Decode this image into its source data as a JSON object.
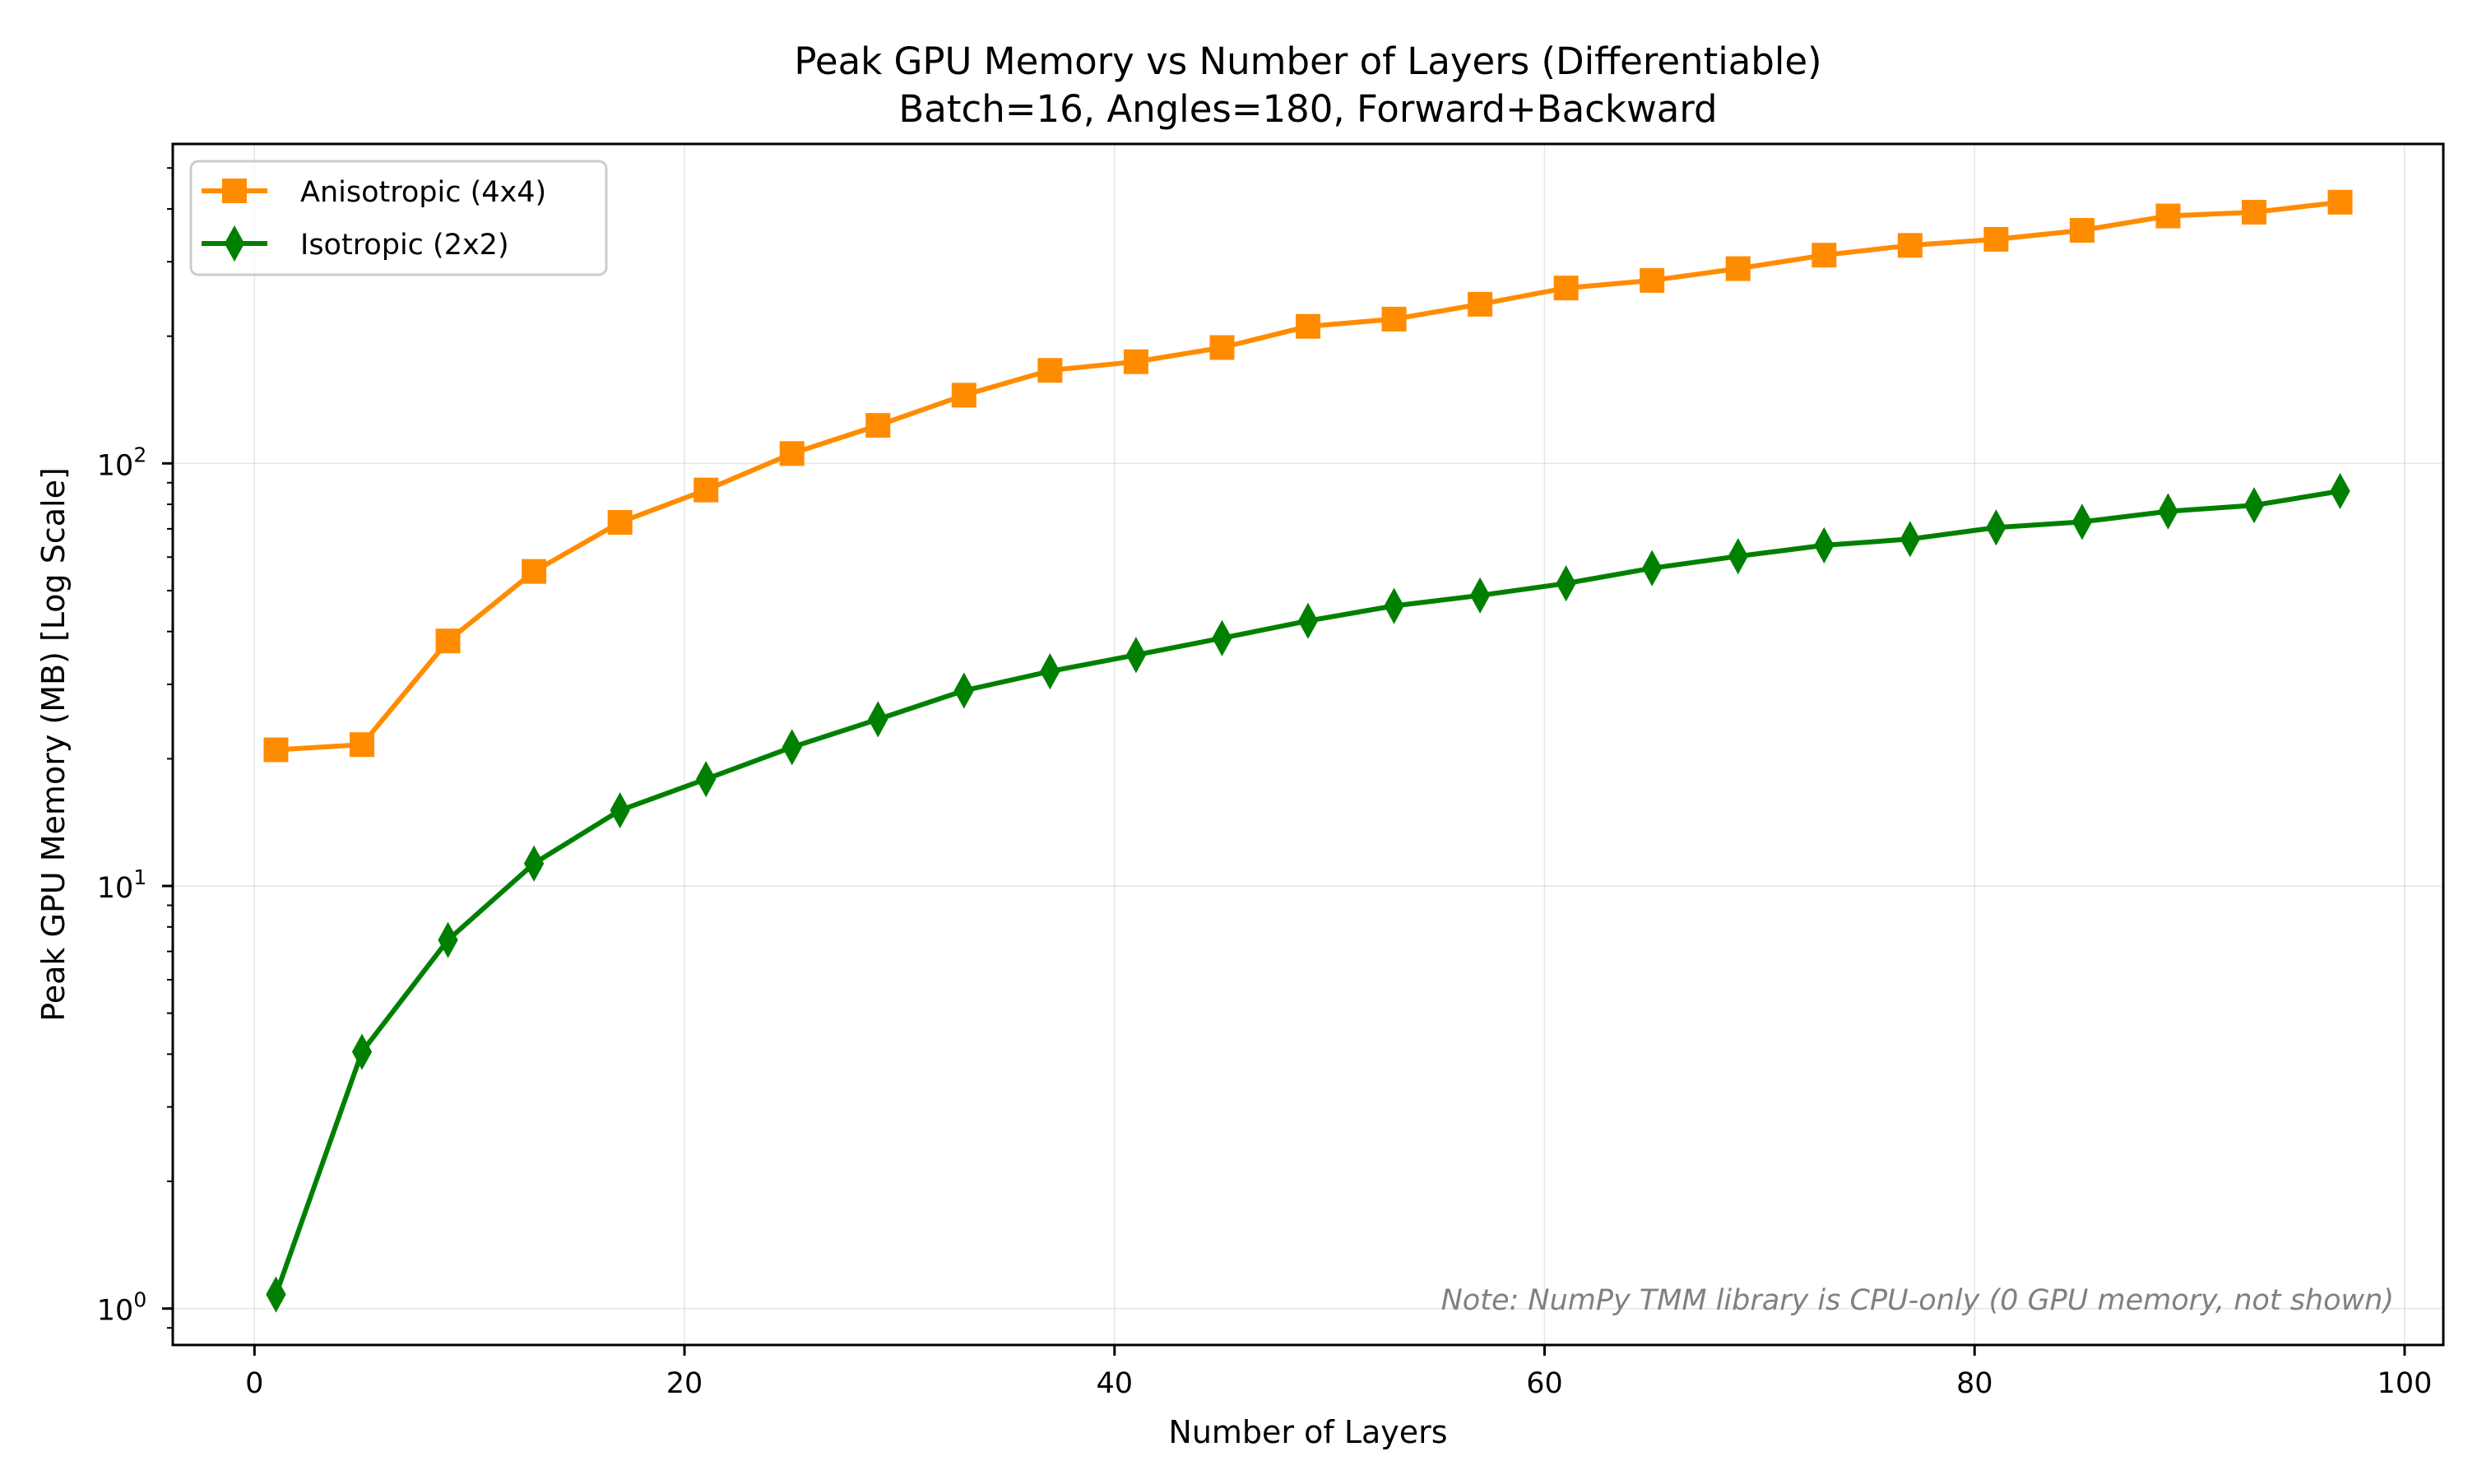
{
  "chart_data": {
    "type": "line",
    "title": "Peak GPU Memory vs Number of Layers (Differentiable)",
    "subtitle": "Batch=16, Angles=180, Forward+Backward",
    "xlabel": "Number of Layers",
    "ylabel": "Peak GPU Memory (MB) [Log Scale]",
    "yscale": "log",
    "xlim": [
      -3.8,
      101.8
    ],
    "ylim": [
      0.82,
      570
    ],
    "grid": true,
    "legend_position": "top-left",
    "x_ticks": [
      {
        "value": 0,
        "label": "0"
      },
      {
        "value": 20,
        "label": "20"
      },
      {
        "value": 40,
        "label": "40"
      },
      {
        "value": 60,
        "label": "60"
      },
      {
        "value": 80,
        "label": "80"
      },
      {
        "value": 100,
        "label": "100"
      }
    ],
    "y_ticks": [
      {
        "value": 1,
        "base": "10",
        "exp": "0"
      },
      {
        "value": 10,
        "base": "10",
        "exp": "1"
      },
      {
        "value": 100,
        "base": "10",
        "exp": "2"
      }
    ],
    "x": [
      1,
      5,
      9,
      13,
      17,
      21,
      25,
      29,
      33,
      37,
      41,
      45,
      49,
      53,
      57,
      61,
      65,
      69,
      73,
      77,
      81,
      85,
      89,
      93,
      97
    ],
    "series": [
      {
        "name": "Anisotropic (4x4)",
        "color": "#ff8c00",
        "marker": "square",
        "values": [
          21.0,
          21.6,
          38.0,
          55.5,
          72.5,
          86.5,
          105.5,
          123.0,
          145.0,
          166.0,
          174.0,
          188.0,
          211.0,
          219.5,
          238.0,
          260.0,
          271.0,
          289.0,
          311.0,
          328.0,
          339.0,
          356.0,
          385.0,
          393.0,
          415.0
        ]
      },
      {
        "name": "Isotropic (2x2)",
        "color": "#008000",
        "marker": "thin-diamond",
        "values": [
          1.08,
          4.05,
          7.45,
          11.3,
          15.1,
          17.9,
          21.3,
          24.8,
          29.0,
          32.2,
          35.2,
          38.6,
          42.4,
          46.0,
          48.7,
          52.0,
          56.5,
          60.3,
          64.0,
          66.2,
          70.5,
          72.7,
          77.0,
          79.6,
          86.0
        ]
      }
    ],
    "annotation": "Note: NumPy TMM library is CPU-only (0 GPU memory, not shown)"
  }
}
